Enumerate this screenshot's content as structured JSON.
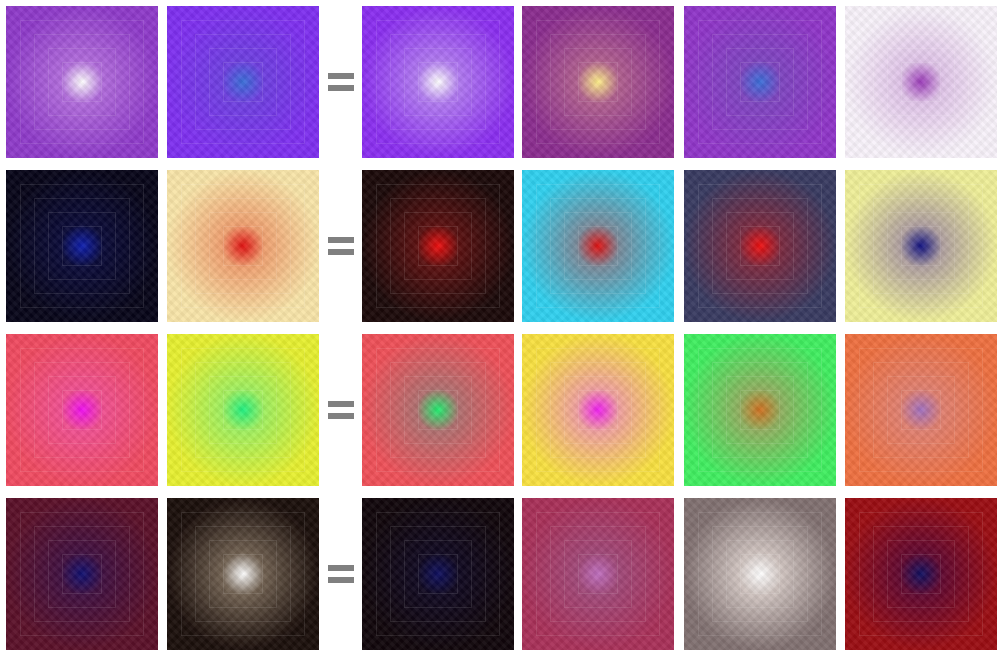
{
  "rows": [
    {
      "inputs": [
        {
          "outer": "#8E3AC9",
          "mid": "#B06BDB",
          "center": "#FFFFFF"
        },
        {
          "outer": "#7E2FF0",
          "mid": "#6E3FE0",
          "center": "#3A6FD8"
        }
      ],
      "outputs": [
        {
          "outer": "#8A2EF0",
          "mid": "#B07AF0",
          "center": "#FFFFFF"
        },
        {
          "outer": "#8A2C8E",
          "mid": "#B0608E",
          "center": "#FFF08A"
        },
        {
          "outer": "#8F35C8",
          "mid": "#7E45C0",
          "center": "#3A6FD8"
        },
        {
          "outer": "#F8F2FA",
          "mid": "#E0C4E8",
          "center": "#9A3AB8"
        }
      ]
    },
    {
      "inputs": [
        {
          "outer": "#060418",
          "mid": "#0A0A38",
          "center": "#1020B0"
        },
        {
          "outer": "#F8E4A8",
          "mid": "#F0A070",
          "center": "#E01010"
        }
      ],
      "outputs": [
        {
          "outer": "#1A0808",
          "mid": "#5A1010",
          "center": "#F01010"
        },
        {
          "outer": "#30D0EE",
          "mid": "#7A8A9A",
          "center": "#E01010"
        },
        {
          "outer": "#383A60",
          "mid": "#7A2A40",
          "center": "#F01010"
        },
        {
          "outer": "#EEEE98",
          "mid": "#B0A0A0",
          "center": "#101080"
        }
      ]
    },
    {
      "inputs": [
        {
          "outer": "#F04A60",
          "mid": "#F05090",
          "center": "#F010F0"
        },
        {
          "outer": "#E6F030",
          "mid": "#A0F060",
          "center": "#20F080"
        }
      ],
      "outputs": [
        {
          "outer": "#EE5058",
          "mid": "#B07070",
          "center": "#20F070"
        },
        {
          "outer": "#F8E040",
          "mid": "#F0A0A0",
          "center": "#F020F0"
        },
        {
          "outer": "#40EE60",
          "mid": "#90B060",
          "center": "#D07020"
        },
        {
          "outer": "#EE7040",
          "mid": "#E08070",
          "center": "#A070C0"
        }
      ]
    },
    {
      "inputs": [
        {
          "outer": "#5A1028",
          "mid": "#401040",
          "center": "#101070"
        },
        {
          "outer": "#1A0E0A",
          "mid": "#706050",
          "center": "#FFFFFF"
        }
      ],
      "outputs": [
        {
          "outer": "#10050A",
          "mid": "#100820",
          "center": "#101060"
        },
        {
          "outer": "#A83058",
          "mid": "#A04878",
          "center": "#C070C0"
        },
        {
          "outer": "#807070",
          "mid": "#D0C4C0",
          "center": "#FFFFFF"
        },
        {
          "outer": "#9A0C12",
          "mid": "#600830",
          "center": "#101060"
        }
      ]
    }
  ]
}
